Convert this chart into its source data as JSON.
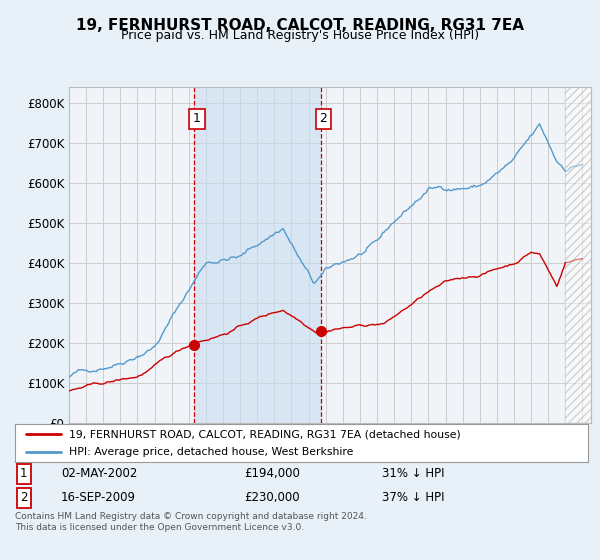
{
  "title": "19, FERNHURST ROAD, CALCOT, READING, RG31 7EA",
  "subtitle": "Price paid vs. HM Land Registry's House Price Index (HPI)",
  "legend_entry1": "19, FERNHURST ROAD, CALCOT, READING, RG31 7EA (detached house)",
  "legend_entry2": "HPI: Average price, detached house, West Berkshire",
  "annotation1_label": "1",
  "annotation1_date": "02-MAY-2002",
  "annotation1_price": "£194,000",
  "annotation1_hpi": "31% ↓ HPI",
  "annotation2_label": "2",
  "annotation2_date": "16-SEP-2009",
  "annotation2_price": "£230,000",
  "annotation2_hpi": "37% ↓ HPI",
  "footer": "Contains HM Land Registry data © Crown copyright and database right 2024.\nThis data is licensed under the Open Government Licence v3.0.",
  "price_color": "#cc0000",
  "hpi_color": "#5599cc",
  "hpi_fill_color": "#c8ddf0",
  "background_color": "#e8f0f8",
  "plot_bg_color": "#f0f4f8",
  "ylim": [
    0,
    840000
  ],
  "xlim_start": 1995.0,
  "xlim_end": 2025.5,
  "marker1_x": 2002.33,
  "marker1_y": 194000,
  "marker2_x": 2009.71,
  "marker2_y": 230000,
  "vline1_x": 2002.33,
  "vline2_x": 2009.71,
  "hatch_start": 2024.0
}
